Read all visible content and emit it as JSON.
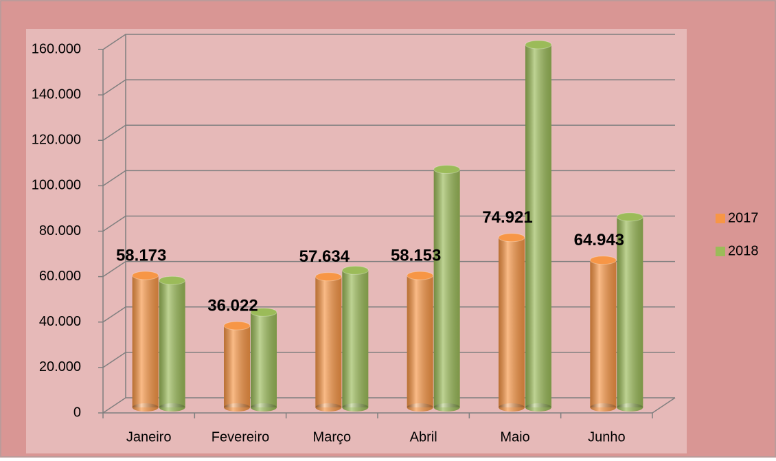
{
  "chart_data": {
    "type": "bar3d",
    "categories": [
      "Janeiro",
      "Fevereiro",
      "Março",
      "Abril",
      "Maio",
      "Junho"
    ],
    "series": [
      {
        "name": "2017",
        "color": "#f79646",
        "values": [
          58173,
          36022,
          57634,
          58153,
          74921,
          64943
        ],
        "value_labels": [
          "58.173",
          "36.022",
          "57.634",
          "58.153",
          "74.921",
          "64.943"
        ]
      },
      {
        "name": "2018",
        "color": "#9bbb59",
        "values": [
          56000,
          42000,
          60500,
          105000,
          160000,
          84000
        ]
      }
    ],
    "ylim": [
      0,
      160000
    ],
    "yticks": [
      0,
      {
        "value": 20000,
        "label": "20.000"
      },
      {
        "value": 40000,
        "label": "40.000"
      },
      {
        "value": 60000,
        "label": "60.000"
      },
      {
        "value": 80000,
        "label": "80.000"
      },
      {
        "value": 100000,
        "label": "100.000"
      },
      {
        "value": 120000,
        "label": "120.000"
      },
      {
        "value": 140000,
        "label": "140.000"
      },
      {
        "value": 160000,
        "label": "160.000"
      }
    ],
    "grid": true,
    "legend": "right"
  }
}
